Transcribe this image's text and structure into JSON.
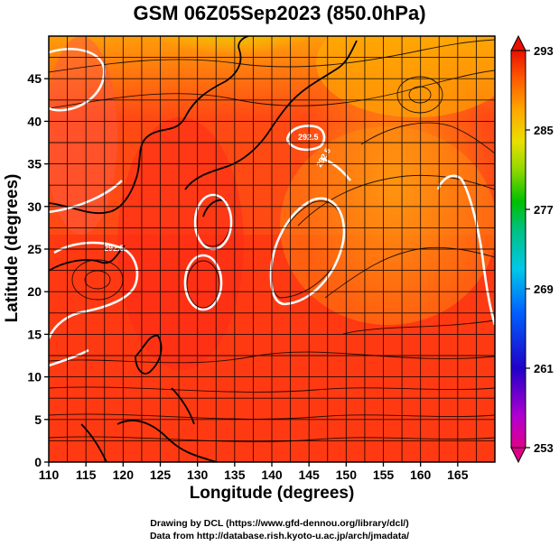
{
  "title": "GSM 06Z05Sep2023 (850.0hPa)",
  "xaxis": {
    "label": "Longitude (degrees)",
    "ticks": [
      "110",
      "115",
      "120",
      "125",
      "130",
      "135",
      "140",
      "145",
      "150",
      "155",
      "160",
      "165"
    ],
    "range": [
      110,
      170
    ]
  },
  "yaxis": {
    "label": "Latitude  (degrees)",
    "ticks": [
      "0",
      "5",
      "10",
      "15",
      "20",
      "25",
      "30",
      "35",
      "40",
      "45"
    ],
    "range": [
      0,
      50
    ]
  },
  "colorbar": {
    "ticks": [
      "293",
      "285",
      "277",
      "269",
      "261",
      "253"
    ],
    "min": 253,
    "max": 293,
    "colors": [
      "#e0008a",
      "#c000d0",
      "#6000d0",
      "#0000c8",
      "#0050ff",
      "#00a0ff",
      "#00d0d0",
      "#00c080",
      "#00c000",
      "#80d800",
      "#e0e000",
      "#ffb000",
      "#ff7a00",
      "#ff3a00",
      "#e80000"
    ]
  },
  "map": {
    "field_colors": {
      "warm": "#ff4a1a",
      "hot": "#ff2e14",
      "mid": "#ff8a0a",
      "cool": "#ffc400",
      "cold": "#a8e000"
    },
    "contour_color": "#ffffff",
    "contour_labels": [
      "292.5",
      "292.5",
      "292.5"
    ]
  },
  "credits": {
    "line1": "Drawing by DCL (https://www.gfd-dennou.org/library/dcl/)",
    "line2": "Data from http://database.rish.kyoto-u.ac.jp/arch/jmadata/"
  }
}
